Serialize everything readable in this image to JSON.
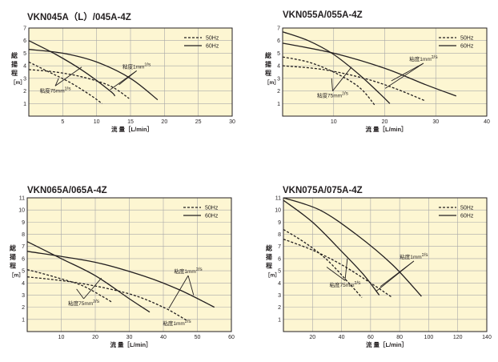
{
  "chart_data": [
    {
      "type": "line",
      "title": "VKN045A（L）/045A-4Z",
      "ylabel_chars": [
        "総",
        "揚",
        "程",
        "［m］"
      ],
      "xlabel": "流 量［L/min］",
      "xlim": [
        0,
        30
      ],
      "ylim": [
        0,
        7
      ],
      "xticks": [
        5,
        10,
        15,
        20,
        25,
        30
      ],
      "yticks": [
        1,
        2,
        3,
        4,
        5,
        6,
        7
      ],
      "legend": {
        "position": "top-right",
        "entries": [
          {
            "label": "50Hz",
            "style": "dashed"
          },
          {
            "label": "60Hz",
            "style": "solid"
          }
        ]
      },
      "series": [
        {
          "style": "solid",
          "points": [
            [
              0,
              6.0
            ],
            [
              4,
              4.9
            ],
            [
              8,
              3.6
            ],
            [
              12,
              2.0
            ],
            [
              12.7,
              1.6
            ]
          ]
        },
        {
          "style": "solid",
          "points": [
            [
              0,
              5.3
            ],
            [
              5,
              5.0
            ],
            [
              10,
              4.3
            ],
            [
              15,
              3.0
            ],
            [
              19,
              1.3
            ]
          ]
        },
        {
          "style": "dashed",
          "points": [
            [
              0,
              4.3
            ],
            [
              3,
              3.5
            ],
            [
              6,
              2.7
            ],
            [
              9,
              1.7
            ],
            [
              10.8,
              1.0
            ]
          ]
        },
        {
          "style": "dashed",
          "points": [
            [
              0,
              3.7
            ],
            [
              4,
              3.5
            ],
            [
              8,
              3.1
            ],
            [
              12,
              2.4
            ],
            [
              14.8,
              1.4
            ]
          ]
        }
      ],
      "annotations": [
        {
          "text": "粘度1mm²/s",
          "anchor": [
            15.9,
            3.6
          ],
          "targets": [
            [
              13.3,
              2.5
            ],
            [
              12.0,
              2.1
            ]
          ]
        },
        {
          "text": "粘度75mm²/s",
          "anchor": [
            3.9,
            2.4
          ],
          "targets": [
            [
              7.8,
              3.9
            ],
            [
              4.4,
              3.0
            ]
          ]
        }
      ]
    },
    {
      "type": "line",
      "title": "VKN055A/055A-4Z",
      "ylabel_chars": [
        "総",
        "揚",
        "程",
        "［m］"
      ],
      "xlabel": "流 量［L/min］",
      "xlim": [
        0,
        40
      ],
      "ylim": [
        0,
        7
      ],
      "xticks": [
        10,
        20,
        30,
        40
      ],
      "yticks": [
        1,
        2,
        3,
        4,
        5,
        6,
        7
      ],
      "legend": {
        "position": "top-right",
        "entries": [
          {
            "label": "50Hz",
            "style": "dashed"
          },
          {
            "label": "60Hz",
            "style": "solid"
          }
        ]
      },
      "series": [
        {
          "style": "solid",
          "points": [
            [
              0,
              6.7
            ],
            [
              5,
              6.0
            ],
            [
              10,
              4.9
            ],
            [
              15,
              3.3
            ],
            [
              19,
              1.8
            ],
            [
              21,
              1.0
            ]
          ]
        },
        {
          "style": "solid",
          "points": [
            [
              0,
              5.8
            ],
            [
              10,
              5.0
            ],
            [
              20,
              3.8
            ],
            [
              28,
              2.5
            ],
            [
              34,
              1.6
            ]
          ]
        },
        {
          "style": "dashed",
          "points": [
            [
              0,
              4.7
            ],
            [
              5,
              4.3
            ],
            [
              10,
              3.5
            ],
            [
              15,
              2.3
            ],
            [
              18,
              0.9
            ]
          ]
        },
        {
          "style": "dashed",
          "points": [
            [
              0,
              4.0
            ],
            [
              8,
              3.7
            ],
            [
              16,
              3.0
            ],
            [
              22,
              2.2
            ],
            [
              28,
              1.2
            ]
          ]
        }
      ],
      "annotations": [
        {
          "text": "粘度1mm²/s",
          "anchor": [
            27.6,
            4.2
          ],
          "targets": [
            [
              21.3,
              2.8
            ],
            [
              20.1,
              2.2
            ]
          ]
        },
        {
          "text": "粘度75mm²/s",
          "anchor": [
            9.8,
            2.0
          ],
          "targets": [
            [
              13.5,
              3.9
            ],
            [
              9.6,
              3.0
            ]
          ]
        }
      ]
    },
    {
      "type": "line",
      "title": "VKN065A/065A-4Z",
      "ylabel_chars": [
        "総",
        "揚",
        "程",
        "［m］"
      ],
      "xlabel": "流 量［L/min］",
      "xlim": [
        0,
        60
      ],
      "ylim": [
        0,
        11
      ],
      "xticks": [
        10,
        20,
        30,
        40,
        50,
        60
      ],
      "yticks": [
        1,
        2,
        3,
        4,
        5,
        6,
        7,
        8,
        9,
        10,
        11
      ],
      "legend": {
        "position": "top-right",
        "entries": [
          {
            "label": "50Hz",
            "style": "dashed"
          },
          {
            "label": "60Hz",
            "style": "solid"
          }
        ]
      },
      "series": [
        {
          "style": "solid",
          "points": [
            [
              0,
              7.4
            ],
            [
              10,
              6.0
            ],
            [
              20,
              4.6
            ],
            [
              30,
              2.7
            ],
            [
              36,
              1.6
            ]
          ]
        },
        {
          "style": "solid",
          "points": [
            [
              0,
              6.6
            ],
            [
              20,
              5.7
            ],
            [
              35,
              4.5
            ],
            [
              45,
              3.4
            ],
            [
              55,
              2.0
            ]
          ]
        },
        {
          "style": "dashed",
          "points": [
            [
              0,
              5.1
            ],
            [
              8,
              4.5
            ],
            [
              16,
              3.8
            ],
            [
              22,
              2.9
            ],
            [
              25,
              2.4
            ]
          ]
        },
        {
          "style": "dashed",
          "points": [
            [
              0,
              4.5
            ],
            [
              15,
              4.0
            ],
            [
              30,
              3.1
            ],
            [
              40,
              2.0
            ],
            [
              47,
              0.9
            ]
          ]
        }
      ],
      "annotations": [
        {
          "text": "粘度1mm²/s",
          "anchor": [
            47.3,
            4.6
          ],
          "targets": [
            [
              48.9,
              3.0
            ],
            [
              41.6,
              1.9
            ]
          ]
        },
        {
          "text": "粘度75mm²/s",
          "anchor": [
            16.6,
            2.7
          ],
          "targets": [
            [
              21.8,
              4.4
            ],
            [
              14.5,
              3.5
            ]
          ]
        },
        {
          "text": "粘度1mm²/s",
          "anchor": null,
          "targets": []
        }
      ]
    },
    {
      "type": "line",
      "title": "VKN075A/075A-4Z",
      "ylabel_chars": [
        "総",
        "揚",
        "程",
        "［m］"
      ],
      "xlabel": "流 量［L/min］",
      "xlim": [
        0,
        140
      ],
      "ylim": [
        0,
        11
      ],
      "xticks": [
        20,
        40,
        60,
        80,
        100,
        120,
        140
      ],
      "yticks": [
        1,
        2,
        3,
        4,
        5,
        6,
        7,
        8,
        9,
        10,
        11
      ],
      "legend": {
        "position": "top-right",
        "entries": [
          {
            "label": "50Hz",
            "style": "dashed"
          },
          {
            "label": "60Hz",
            "style": "solid"
          }
        ]
      },
      "series": [
        {
          "style": "solid",
          "points": [
            [
              0,
              10.8
            ],
            [
              20,
              9.0
            ],
            [
              40,
              6.6
            ],
            [
              55,
              4.7
            ],
            [
              66,
              3.0
            ]
          ]
        },
        {
          "style": "solid",
          "points": [
            [
              0,
              11.0
            ],
            [
              25,
              10.0
            ],
            [
              50,
              8.0
            ],
            [
              75,
              5.5
            ],
            [
              95,
              2.9
            ]
          ]
        },
        {
          "style": "dashed",
          "points": [
            [
              0,
              8.4
            ],
            [
              15,
              7.3
            ],
            [
              30,
              5.9
            ],
            [
              45,
              4.0
            ],
            [
              54,
              2.8
            ]
          ]
        },
        {
          "style": "dashed",
          "points": [
            [
              0,
              7.6
            ],
            [
              20,
              6.7
            ],
            [
              40,
              5.5
            ],
            [
              60,
              4.0
            ],
            [
              75,
              2.8
            ]
          ]
        }
      ],
      "annotations": [
        {
          "text": "粘度1mm²/s",
          "anchor": [
            89.8,
            5.8
          ],
          "targets": [
            [
              66.7,
              3.7
            ],
            [
              63.7,
              3.3
            ]
          ]
        },
        {
          "text": "粘度75mm²/s",
          "anchor": [
            42.4,
            4.2
          ],
          "targets": [
            [
              44.0,
              6.0
            ],
            [
              29.8,
              5.3
            ]
          ]
        }
      ]
    }
  ],
  "colors": {
    "plot_background": "#fdf6d2",
    "grid": "#a8a8a8",
    "frame": "#231f20",
    "line": "#231f20"
  }
}
